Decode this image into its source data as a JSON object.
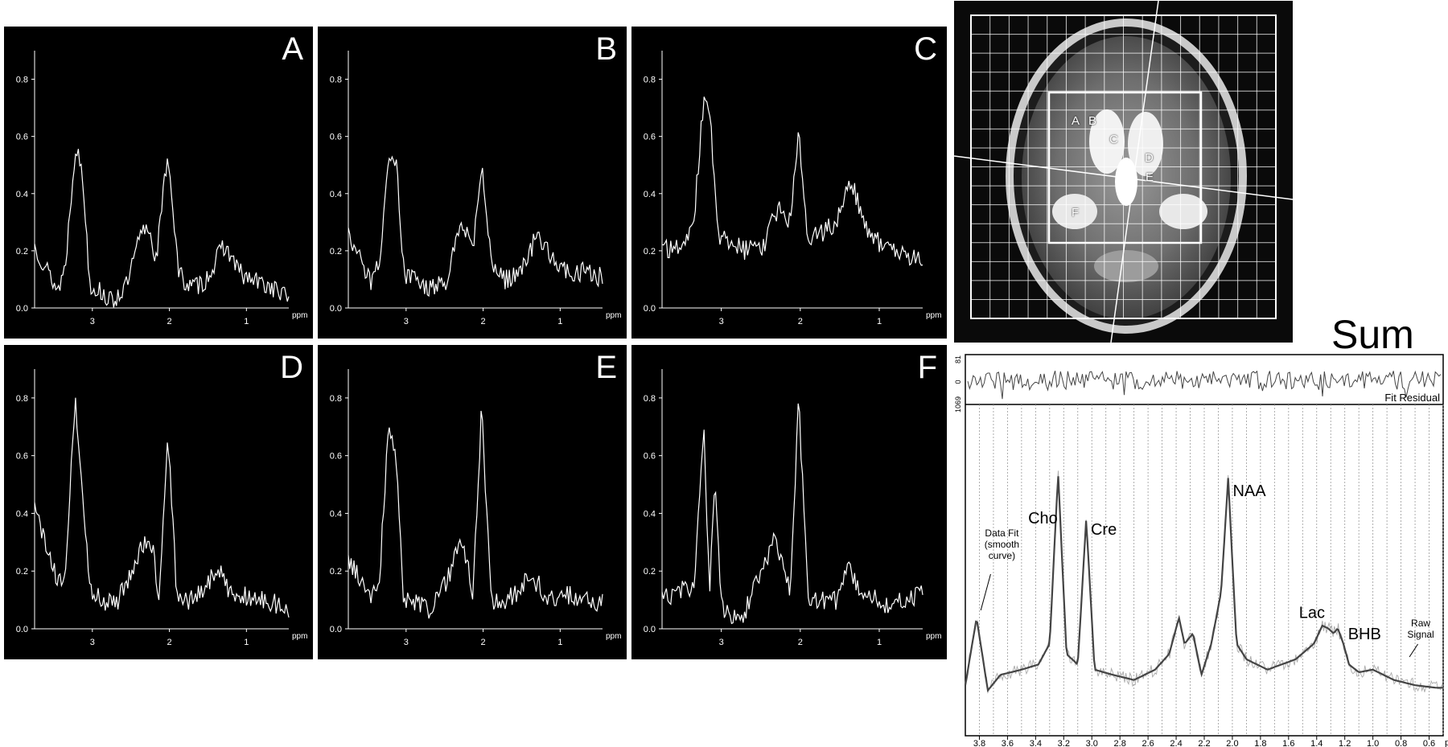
{
  "figure": {
    "sum_title": "Sum",
    "voxel_labels": [
      "A",
      "B",
      "C",
      "D",
      "E",
      "F"
    ]
  },
  "chart_data": [
    {
      "type": "line",
      "panel": "A",
      "x_axis": {
        "ticks": [
          3,
          2,
          1
        ],
        "unit": "ppm",
        "range": [
          3.75,
          0.45
        ],
        "reversed": true
      },
      "y_axis": {
        "ticks": [
          "0.0",
          "0.2",
          "0.4",
          "0.6",
          "0.8"
        ],
        "range": [
          0,
          0.9
        ]
      },
      "series": [
        {
          "x": [
            3.75,
            3.45,
            3.35,
            3.22,
            3.13,
            3.03,
            2.9,
            2.75,
            2.55,
            2.38,
            2.28,
            2.17,
            2.02,
            1.88,
            1.72,
            1.55,
            1.4,
            1.3,
            1.2,
            1.05,
            0.85,
            0.65,
            0.5
          ],
          "y": [
            0.22,
            0.06,
            0.15,
            0.57,
            0.47,
            0.08,
            0.06,
            0.02,
            0.08,
            0.25,
            0.29,
            0.17,
            0.55,
            0.12,
            0.07,
            0.09,
            0.16,
            0.22,
            0.18,
            0.11,
            0.09,
            0.07,
            0.04
          ]
        }
      ]
    },
    {
      "type": "line",
      "panel": "B",
      "x_axis": {
        "ticks": [
          3,
          2,
          1
        ],
        "unit": "ppm",
        "range": [
          3.75,
          0.45
        ],
        "reversed": true
      },
      "y_axis": {
        "ticks": [
          "0.0",
          "0.2",
          "0.4",
          "0.6",
          "0.8"
        ],
        "range": [
          0,
          0.9
        ]
      },
      "series": [
        {
          "x": [
            3.75,
            3.45,
            3.35,
            3.22,
            3.12,
            3.03,
            2.9,
            2.7,
            2.45,
            2.33,
            2.22,
            2.13,
            2.02,
            1.88,
            1.72,
            1.55,
            1.4,
            1.3,
            1.2,
            1.05,
            0.85,
            0.65,
            0.5
          ],
          "y": [
            0.26,
            0.08,
            0.16,
            0.52,
            0.5,
            0.12,
            0.1,
            0.06,
            0.1,
            0.28,
            0.26,
            0.22,
            0.49,
            0.14,
            0.1,
            0.12,
            0.18,
            0.27,
            0.22,
            0.14,
            0.12,
            0.13,
            0.11
          ]
        }
      ]
    },
    {
      "type": "line",
      "panel": "C",
      "x_axis": {
        "ticks": [
          3,
          2,
          1
        ],
        "unit": "ppm",
        "range": [
          3.75,
          0.45
        ],
        "reversed": true
      },
      "y_axis": {
        "ticks": [
          "0.0",
          "0.2",
          "0.4",
          "0.6",
          "0.8"
        ],
        "range": [
          0,
          0.9
        ]
      },
      "series": [
        {
          "x": [
            3.75,
            3.45,
            3.35,
            3.22,
            3.13,
            3.03,
            2.9,
            2.7,
            2.45,
            2.33,
            2.22,
            2.13,
            2.02,
            1.9,
            1.72,
            1.55,
            1.4,
            1.3,
            1.2,
            1.05,
            0.85,
            0.65,
            0.5
          ],
          "y": [
            0.2,
            0.22,
            0.3,
            0.74,
            0.62,
            0.24,
            0.24,
            0.2,
            0.22,
            0.32,
            0.36,
            0.3,
            0.6,
            0.24,
            0.26,
            0.3,
            0.42,
            0.4,
            0.3,
            0.24,
            0.2,
            0.18,
            0.18
          ]
        }
      ]
    },
    {
      "type": "line",
      "panel": "D",
      "x_axis": {
        "ticks": [
          3,
          2,
          1
        ],
        "unit": "ppm",
        "range": [
          3.75,
          0.45
        ],
        "reversed": true
      },
      "y_axis": {
        "ticks": [
          "0.0",
          "0.2",
          "0.4",
          "0.6",
          "0.8"
        ],
        "range": [
          0,
          0.9
        ]
      },
      "series": [
        {
          "x": [
            3.75,
            3.45,
            3.35,
            3.22,
            3.03,
            2.9,
            2.7,
            2.45,
            2.33,
            2.22,
            2.13,
            2.02,
            1.9,
            1.72,
            1.55,
            1.4,
            1.3,
            1.2,
            1.05,
            0.85,
            0.65,
            0.5
          ],
          "y": [
            0.42,
            0.16,
            0.2,
            0.8,
            0.14,
            0.1,
            0.08,
            0.22,
            0.3,
            0.28,
            0.1,
            0.67,
            0.1,
            0.1,
            0.14,
            0.2,
            0.18,
            0.12,
            0.12,
            0.1,
            0.09,
            0.07
          ]
        }
      ]
    },
    {
      "type": "line",
      "panel": "E",
      "x_axis": {
        "ticks": [
          3,
          2,
          1
        ],
        "unit": "ppm",
        "range": [
          3.75,
          0.45
        ],
        "reversed": true
      },
      "y_axis": {
        "ticks": [
          "0.0",
          "0.2",
          "0.4",
          "0.6",
          "0.8"
        ],
        "range": [
          0,
          0.9
        ]
      },
      "series": [
        {
          "x": [
            3.75,
            3.45,
            3.35,
            3.22,
            3.12,
            3.03,
            2.9,
            2.7,
            2.45,
            2.33,
            2.22,
            2.13,
            2.02,
            1.9,
            1.72,
            1.55,
            1.4,
            1.3,
            1.2,
            1.05,
            0.85,
            0.65,
            0.5
          ],
          "y": [
            0.23,
            0.12,
            0.16,
            0.73,
            0.55,
            0.1,
            0.1,
            0.06,
            0.18,
            0.28,
            0.26,
            0.12,
            0.77,
            0.1,
            0.1,
            0.12,
            0.18,
            0.16,
            0.12,
            0.1,
            0.12,
            0.1,
            0.09
          ]
        }
      ]
    },
    {
      "type": "line",
      "panel": "F",
      "x_axis": {
        "ticks": [
          3,
          2,
          1
        ],
        "unit": "ppm",
        "range": [
          3.75,
          0.45
        ],
        "reversed": true
      },
      "y_axis": {
        "ticks": [
          "0.0",
          "0.2",
          "0.4",
          "0.6",
          "0.8"
        ],
        "range": [
          0,
          0.9
        ]
      },
      "series": [
        {
          "x": [
            3.75,
            3.45,
            3.35,
            3.22,
            3.15,
            3.08,
            3.0,
            2.85,
            2.75,
            2.45,
            2.33,
            2.22,
            2.13,
            2.02,
            1.9,
            1.72,
            1.55,
            1.4,
            1.3,
            1.2,
            1.05,
            0.85,
            0.65,
            0.5
          ],
          "y": [
            0.1,
            0.15,
            0.14,
            0.67,
            0.12,
            0.55,
            0.08,
            0.04,
            0.02,
            0.24,
            0.3,
            0.24,
            0.14,
            0.79,
            0.1,
            0.1,
            0.1,
            0.22,
            0.16,
            0.12,
            0.1,
            0.08,
            0.1,
            0.12
          ]
        }
      ]
    },
    {
      "type": "line",
      "panel": "Sum",
      "title": "Sum",
      "x_axis": {
        "ticks": [
          "3.8",
          "3.6",
          "3.4",
          "3.2",
          "3.0",
          "2.8",
          "2.6",
          "2.4",
          "2.2",
          "2.0",
          "1.8",
          "1.6",
          "1.4",
          "1.2",
          "1.0",
          "0.8",
          "0.6"
        ],
        "unit": "ppm",
        "range": [
          3.9,
          0.5
        ],
        "reversed": true
      },
      "residual_y_ticks": [
        "81",
        "0",
        "1069"
      ],
      "residual_label": "Fit Residual",
      "peak_labels": [
        {
          "text": "Cho",
          "ppm": 3.22
        },
        {
          "text": "Cre",
          "ppm": 3.03
        },
        {
          "text": "NAA",
          "ppm": 2.02
        },
        {
          "text": "Lac",
          "ppm": 1.33
        },
        {
          "text": "BHB",
          "ppm": 1.2
        }
      ],
      "annotations": [
        {
          "lines": [
            "Data Fit",
            "(smooth",
            "curve)"
          ]
        },
        {
          "lines": [
            "Raw",
            "Signal"
          ]
        }
      ],
      "series": [
        {
          "x": [
            3.9,
            3.82,
            3.74,
            3.65,
            3.5,
            3.38,
            3.3,
            3.24,
            3.18,
            3.1,
            3.04,
            2.98,
            2.85,
            2.7,
            2.55,
            2.45,
            2.38,
            2.34,
            2.28,
            2.22,
            2.15,
            2.08,
            2.03,
            1.97,
            1.9,
            1.75,
            1.55,
            1.42,
            1.36,
            1.32,
            1.28,
            1.25,
            1.21,
            1.17,
            1.1,
            1.0,
            0.85,
            0.7,
            0.55
          ],
          "y": [
            0.04,
            0.3,
            0.02,
            0.08,
            0.1,
            0.12,
            0.2,
            0.86,
            0.16,
            0.12,
            0.68,
            0.1,
            0.08,
            0.06,
            0.1,
            0.16,
            0.3,
            0.2,
            0.24,
            0.08,
            0.2,
            0.4,
            0.84,
            0.2,
            0.14,
            0.1,
            0.14,
            0.2,
            0.27,
            0.26,
            0.24,
            0.26,
            0.2,
            0.12,
            0.09,
            0.1,
            0.06,
            0.04,
            0.03
          ]
        }
      ]
    }
  ]
}
